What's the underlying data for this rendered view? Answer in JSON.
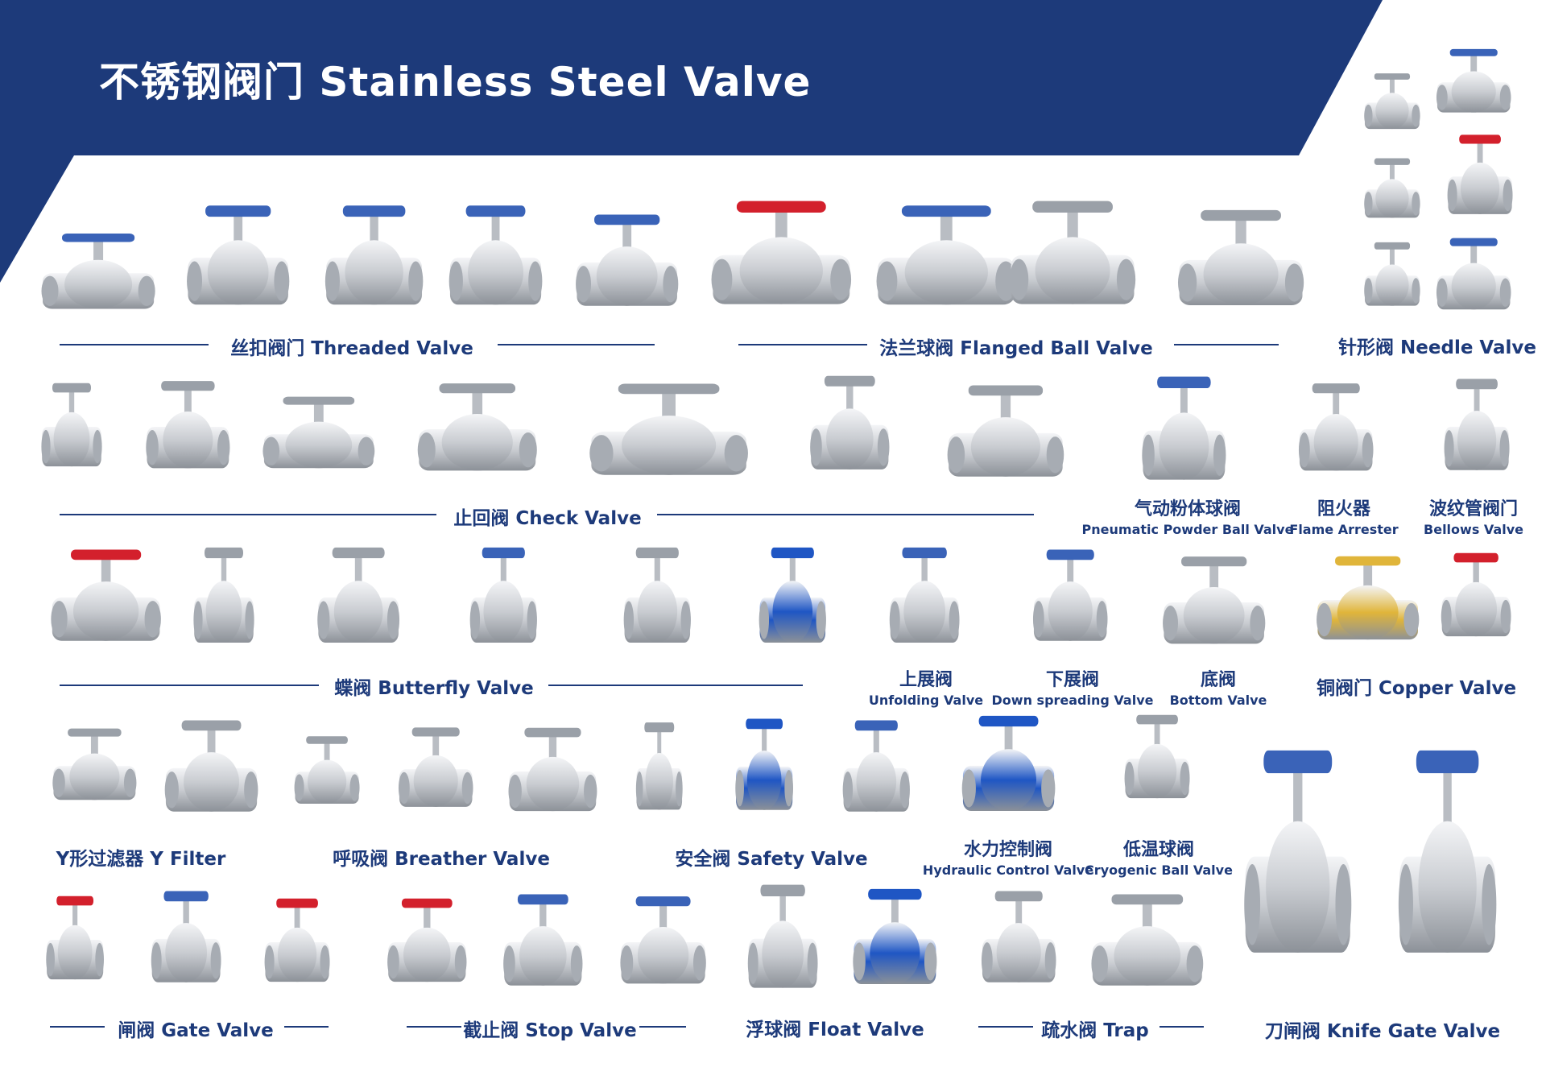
{
  "header": {
    "title": "不锈钢阀门 Stainless Steel Valve",
    "banner_color": "#1d3a7a"
  },
  "categories": {
    "threaded": "丝扣阀门 Threaded Valve",
    "flanged_ball": "法兰球阀 Flanged Ball Valve",
    "needle": "针形阀 Needle Valve",
    "check": "止回阀 Check Valve",
    "pneumatic": {
      "cn": "气动粉体球阀",
      "en": "Pneumatic Powder Ball Valve"
    },
    "flame": {
      "cn": "阻火器",
      "en": "Flame Arrester"
    },
    "bellows": {
      "cn": "波纹管阀门",
      "en": "Bellows Valve"
    },
    "butterfly": "蝶阀 Butterfly Valve",
    "unfolding": {
      "cn": "上展阀",
      "en": "Unfolding Valve"
    },
    "down_spreading": {
      "cn": "下展阀",
      "en": "Down spreading Valve"
    },
    "bottom": {
      "cn": "底阀",
      "en": "Bottom Valve"
    },
    "copper": "铜阀门 Copper Valve",
    "y_filter": "Y形过滤器 Y Filter",
    "breather": "呼吸阀 Breather Valve",
    "safety": "安全阀 Safety Valve",
    "hydraulic": {
      "cn": "水力控制阀",
      "en": "Hydraulic Control Valve"
    },
    "cryogenic": {
      "cn": "低温球阀",
      "en": "Cryogenic Ball Valve"
    },
    "gate": "闸阀 Gate Valve",
    "stop": "截止阀 Stop Valve",
    "float": "浮球阀 Float Valve",
    "trap": "疏水阀 Trap",
    "knife_gate": "刀闸阀 Knife Gate Valve"
  },
  "colors": {
    "handle_blue": "#3a63b8",
    "handle_red": "#d3202c",
    "brass": "#e0b53a",
    "steel": "#c9ccd1",
    "hydraulic_blue": "#1f56c4"
  }
}
